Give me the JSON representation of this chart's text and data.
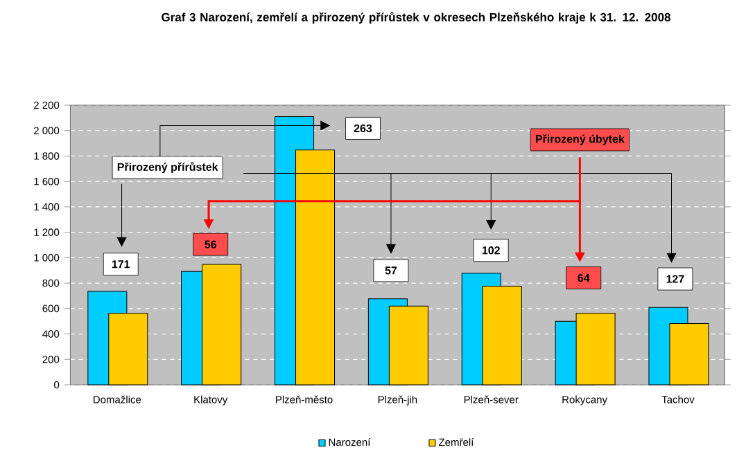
{
  "chart_data": {
    "type": "bar",
    "title": "Graf 3 Narození, zemřelí a přirozený přírůstek v okresech Plzeňského kraje k 31. 12. 2008",
    "categories": [
      "Domažlice",
      "Klatovy",
      "Plzeň-město",
      "Plzeň-jih",
      "Plzeň-sever",
      "Rokycany",
      "Tachov"
    ],
    "series": [
      {
        "name": "Narození",
        "color": "#00ccff",
        "values": [
          735,
          892,
          2110,
          677,
          878,
          500,
          609
        ]
      },
      {
        "name": "Zemřelí",
        "color": "#ffcc00",
        "values": [
          562,
          948,
          1847,
          620,
          776,
          564,
          482
        ]
      }
    ],
    "ylim": [
      0,
      2200
    ],
    "yticks": [
      {
        "value": 0,
        "label": "0"
      },
      {
        "value": 200,
        "label": "200"
      },
      {
        "value": 400,
        "label": "400"
      },
      {
        "value": 600,
        "label": "600"
      },
      {
        "value": 800,
        "label": "800"
      },
      {
        "value": 1000,
        "label": "1 000"
      },
      {
        "value": 1200,
        "label": "1 200"
      },
      {
        "value": 1400,
        "label": "1 400"
      },
      {
        "value": 1600,
        "label": "1 600"
      },
      {
        "value": 1800,
        "label": "1 800"
      },
      {
        "value": 2000,
        "label": "2 000"
      },
      {
        "value": 2200,
        "label": "2 200"
      }
    ],
    "grid": "y",
    "legend": "bottom",
    "annotations": [
      "Přirozený přírůstek",
      "Přirozený úbytek",
      "171",
      "56",
      "263",
      "57",
      "102",
      "64",
      "127"
    ]
  }
}
